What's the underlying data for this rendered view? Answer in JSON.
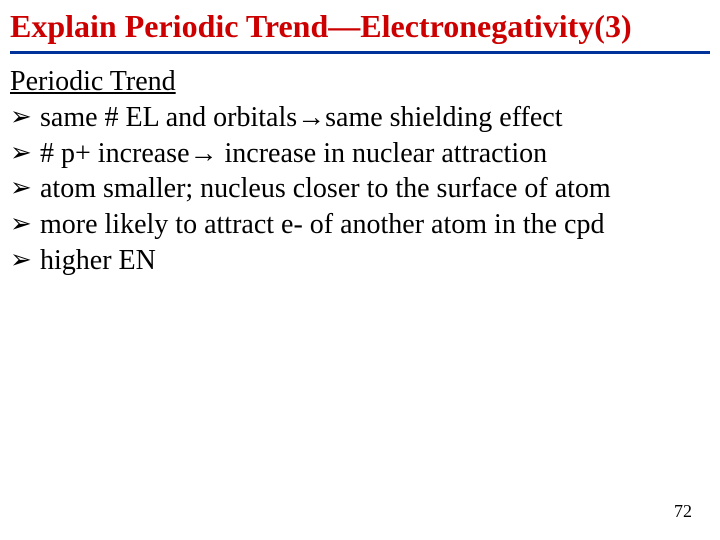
{
  "slide": {
    "title": "Explain Periodic Trend—Electronegativity(3)",
    "title_color": "#cc0000",
    "underline_color": "#003399",
    "subheading": "Periodic Trend",
    "bullets": [
      " same # EL and orbitals→same shielding effect",
      "# p+ increase→ increase in nuclear attraction",
      " atom smaller; nucleus closer to the surface of atom",
      " more likely to attract e- of another atom in the cpd",
      " higher EN"
    ],
    "bullet_marker": "➢",
    "page_number": "72",
    "text_color": "#000000",
    "background_color": "#ffffff",
    "title_fontsize": 32,
    "body_fontsize": 28,
    "pagenum_fontsize": 18
  }
}
